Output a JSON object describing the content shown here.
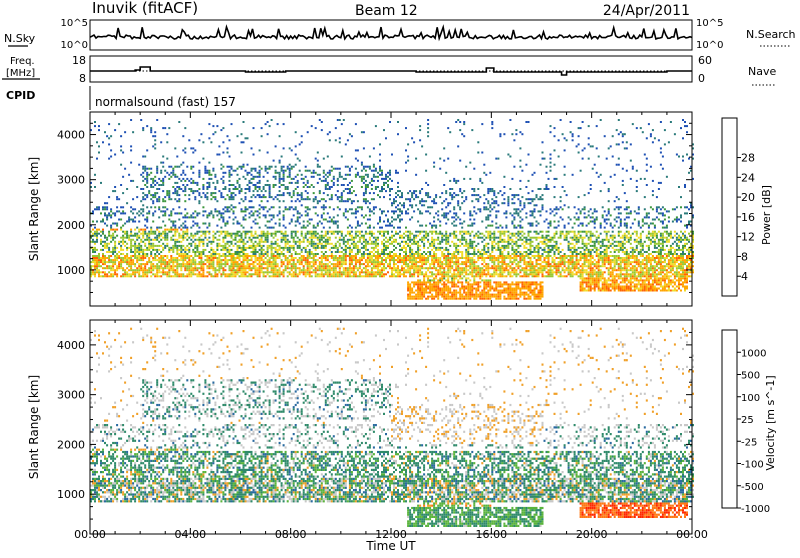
{
  "header": {
    "station": "Inuvik (fitACF)",
    "beam": "Beam 12",
    "date": "24/Apr/2011"
  },
  "status_panels": {
    "nsky": {
      "label": "N.Sky",
      "ticks": [
        "10^5",
        "10^0"
      ]
    },
    "nsearch": {
      "label": "N.Search",
      "ticks": [
        "10^5",
        "10^0"
      ]
    },
    "freq": {
      "label_line1": "Freq.",
      "label_line2": "[MHz]",
      "ticks": [
        "18",
        "8"
      ]
    },
    "nave": {
      "label": "Nave",
      "ticks": [
        "60",
        "0"
      ]
    },
    "cpid": {
      "label": "CPID",
      "value": "normalsound (fast) 157"
    }
  },
  "chart_data": [
    {
      "type": "heatmap",
      "name": "power",
      "ylabel": "Slant Range [km]",
      "xlabel": "Time UT",
      "xlim": [
        0,
        24
      ],
      "ylim": [
        200,
        4500
      ],
      "x_ticks": [
        "00:00",
        "04:00",
        "08:00",
        "12:00",
        "16:00",
        "20:00",
        "00:00"
      ],
      "y_ticks": [
        "1000",
        "2000",
        "3000",
        "4000"
      ],
      "colorbar": {
        "label": "Power [dB]",
        "ticks": [
          "4",
          "8",
          "12",
          "16",
          "20",
          "24",
          "28"
        ],
        "colors": [
          "#0000ff",
          "#1e50b4",
          "#2a7a7a",
          "#3c963c",
          "#9ac832",
          "#f0dc28",
          "#ffa500",
          "#ff6400",
          "#ff2800"
        ]
      }
    },
    {
      "type": "heatmap",
      "name": "velocity",
      "ylabel": "Slant Range [km]",
      "xlabel": "Time UT",
      "xlim": [
        0,
        24
      ],
      "ylim": [
        200,
        4500
      ],
      "x_ticks": [
        "00:00",
        "04:00",
        "08:00",
        "12:00",
        "16:00",
        "20:00",
        "00:00"
      ],
      "y_ticks": [
        "1000",
        "2000",
        "3000",
        "4000"
      ],
      "colorbar": {
        "label": "Velocity [m s^-1]",
        "ticks": [
          "1000",
          "500",
          "100",
          "25",
          "-25",
          "-100",
          "-500",
          "-1000"
        ],
        "colors": [
          "#1e3cc8",
          "#2a6aa0",
          "#2f8a6a",
          "#5ab43c",
          "#c8c8c8",
          "#f0a028",
          "#ff7814",
          "#ff2800"
        ]
      }
    }
  ]
}
